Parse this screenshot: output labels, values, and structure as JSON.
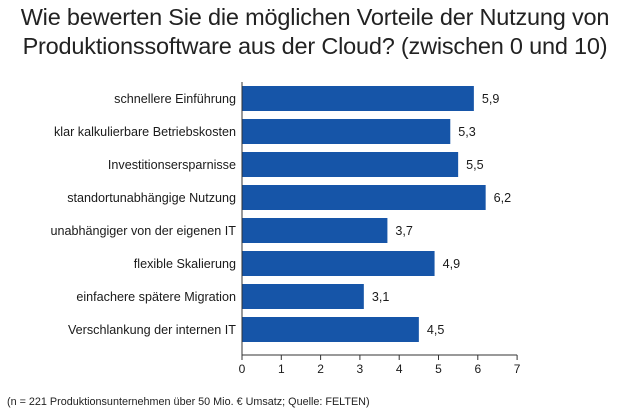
{
  "title_line1": "Wie bewerten Sie die möglichen Vorteile der Nutzung von",
  "title_line2": "Produktionssoftware aus der Cloud? (zwischen 0 und 10)",
  "source": "(n = 221 Produktionsunternehmen über 50 Mio. € Umsatz; Quelle: FELTEN)",
  "colors": {
    "bar": "#1655a8",
    "axis": "#333333",
    "text": "#1a1a1a"
  },
  "chart_data": {
    "type": "bar",
    "orientation": "horizontal",
    "title": "Wie bewerten Sie die möglichen Vorteile der Nutzung von Produktionssoftware aus der Cloud? (zwischen 0 und 10)",
    "categories": [
      "schnellere Einführung",
      "klar kalkulierbare Betriebskosten",
      "Investitionsersparnisse",
      "standortunabhängige Nutzung",
      "unabhängiger von der eigenen IT",
      "flexible Skalierung",
      "einfachere spätere Migration",
      "Verschlankung der internen IT"
    ],
    "values": [
      5.9,
      5.3,
      5.5,
      6.2,
      3.7,
      4.9,
      3.1,
      4.5
    ],
    "value_labels": [
      "5,9",
      "5,3",
      "5,5",
      "6,2",
      "3,7",
      "4,9",
      "3,1",
      "4,5"
    ],
    "xticks": [
      0,
      1,
      2,
      3,
      4,
      5,
      6,
      7
    ],
    "xlim": [
      0,
      7
    ],
    "xlabel": "",
    "ylabel": "",
    "grid": false,
    "legend": "none"
  }
}
